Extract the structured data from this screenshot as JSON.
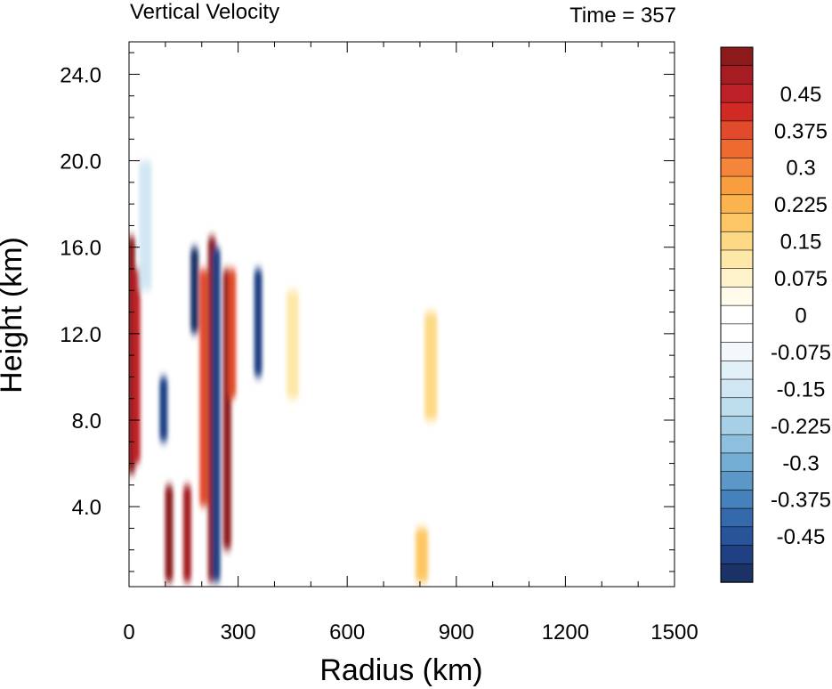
{
  "chart_data": {
    "type": "heatmap",
    "title": "Vertical Velocity",
    "time_label": "Time = 357",
    "xlabel": "Radius (km)",
    "ylabel": "Height (km)",
    "xlim": [
      0,
      1500
    ],
    "ylim": [
      0.3,
      25.5
    ],
    "x_ticks": [
      0,
      300,
      600,
      900,
      1200,
      1500
    ],
    "x_tick_labels": [
      "0",
      "300",
      "600",
      "900",
      "1200",
      "1500"
    ],
    "y_ticks": [
      4,
      8,
      12,
      16,
      20,
      24
    ],
    "y_tick_labels": [
      "4.0",
      "8.0",
      "12.0",
      "16.0",
      "20.0",
      "24.0"
    ],
    "colorbar": {
      "levels": [
        0.45,
        0.375,
        0.3,
        0.225,
        0.15,
        0.075,
        0,
        -0.075,
        -0.15,
        -0.225,
        -0.3,
        -0.375,
        -0.45
      ],
      "labels": [
        "0.45",
        "0.375",
        "0.3",
        "0.225",
        "0.15",
        "0.075",
        "0",
        "-0.075",
        "-0.15",
        "-0.225",
        "-0.3",
        "-0.375",
        "-0.45"
      ],
      "colors": [
        "#8c1a1a",
        "#a51c22",
        "#bd2026",
        "#d12a25",
        "#e14a2a",
        "#ee6a2e",
        "#f5853a",
        "#f99e3f",
        "#fbb44d",
        "#fdc765",
        "#fdd985",
        "#fee8a8",
        "#fff3cc",
        "#fffaea",
        "#ffffff",
        "#ffffff",
        "#f2f8fc",
        "#e2f0f8",
        "#d0e7f3",
        "#bedded",
        "#a7d0e7",
        "#8ec0de",
        "#74aed4",
        "#5b98c8",
        "#4581bb",
        "#346aab",
        "#28559a",
        "#1f4184",
        "#1a3266"
      ]
    },
    "features": [
      {
        "r": 6,
        "z0": 5.5,
        "z1": 16.5,
        "w": 0.6
      },
      {
        "r": 20,
        "z0": 6,
        "z1": 15,
        "w": 0.45
      },
      {
        "r": 45,
        "z0": 14,
        "z1": 20,
        "w": -0.15
      },
      {
        "r": 95,
        "z0": 7,
        "z1": 10,
        "w": -0.5
      },
      {
        "r": 110,
        "z0": 0.5,
        "z1": 5,
        "w": 0.55
      },
      {
        "r": 160,
        "z0": 0.5,
        "z1": 5,
        "w": 0.5
      },
      {
        "r": 180,
        "z0": 12,
        "z1": 16,
        "w": -0.55
      },
      {
        "r": 205,
        "z0": 4,
        "z1": 15,
        "w": 0.4
      },
      {
        "r": 228,
        "z0": 0.5,
        "z1": 16.5,
        "w": 0.6
      },
      {
        "r": 240,
        "z0": 0.5,
        "z1": 16,
        "w": -0.5
      },
      {
        "r": 270,
        "z0": 2,
        "z1": 15,
        "w": 0.55
      },
      {
        "r": 283,
        "z0": 9,
        "z1": 15,
        "w": 0.4
      },
      {
        "r": 355,
        "z0": 10,
        "z1": 15,
        "w": -0.5
      },
      {
        "r": 450,
        "z0": 9,
        "z1": 14,
        "w": 0.1
      },
      {
        "r": 770,
        "z0": 6,
        "z1": 15,
        "w": -0.05
      },
      {
        "r": 830,
        "z0": 8,
        "z1": 13,
        "w": 0.15
      },
      {
        "r": 805,
        "z0": 0.5,
        "z1": 3,
        "w": 0.2
      }
    ]
  }
}
